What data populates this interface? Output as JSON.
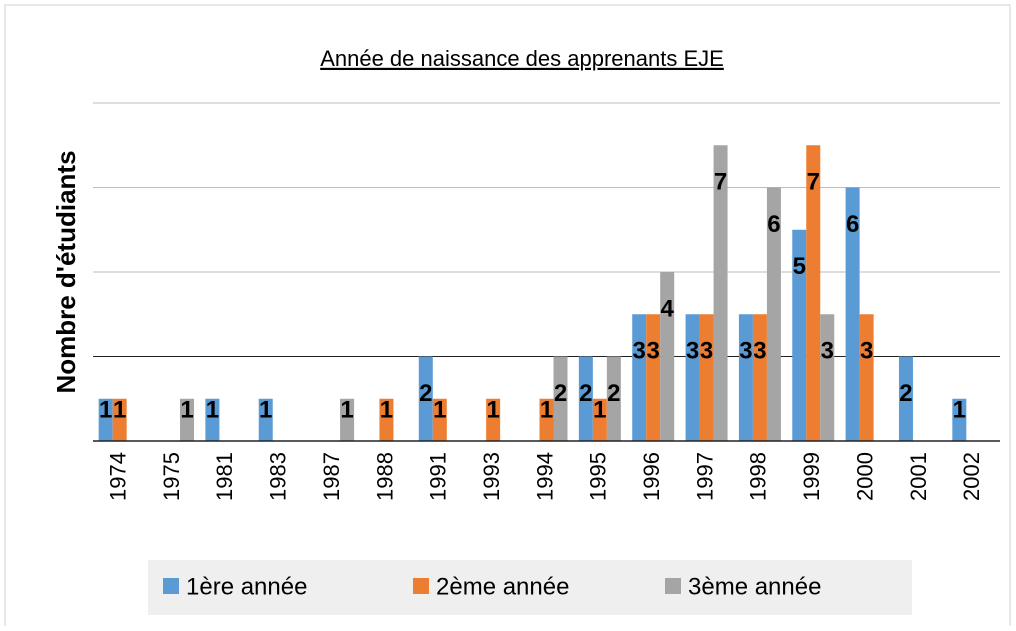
{
  "chart_data": {
    "type": "bar",
    "title": "Année de naissance des apprenants EJE",
    "y_label": "Nombre d'étudiants",
    "categories": [
      "1974",
      "1975",
      "1981",
      "1983",
      "1987",
      "1988",
      "1991",
      "1993",
      "1994",
      "1995",
      "1996",
      "1997",
      "1998",
      "1999",
      "2000",
      "2001",
      "2002"
    ],
    "series": [
      {
        "name": "1ère année",
        "color": "#5b9bd5",
        "values": [
          1,
          null,
          1,
          1,
          null,
          null,
          2,
          null,
          null,
          2,
          3,
          3,
          3,
          5,
          6,
          2,
          1
        ]
      },
      {
        "name": "2ème année",
        "color": "#ed7d31",
        "values": [
          1,
          null,
          null,
          null,
          null,
          1,
          1,
          1,
          1,
          1,
          3,
          3,
          3,
          7,
          3,
          null,
          null
        ]
      },
      {
        "name": "3ème année",
        "color": "#a5a5a5",
        "values": [
          null,
          1,
          null,
          null,
          1,
          null,
          null,
          null,
          2,
          2,
          4,
          7,
          6,
          3,
          null,
          null,
          null
        ]
      }
    ],
    "ylim": [
      0,
      8
    ],
    "yticks": [
      0,
      2,
      4,
      6,
      8
    ],
    "grid": true,
    "legend": "bottom"
  }
}
